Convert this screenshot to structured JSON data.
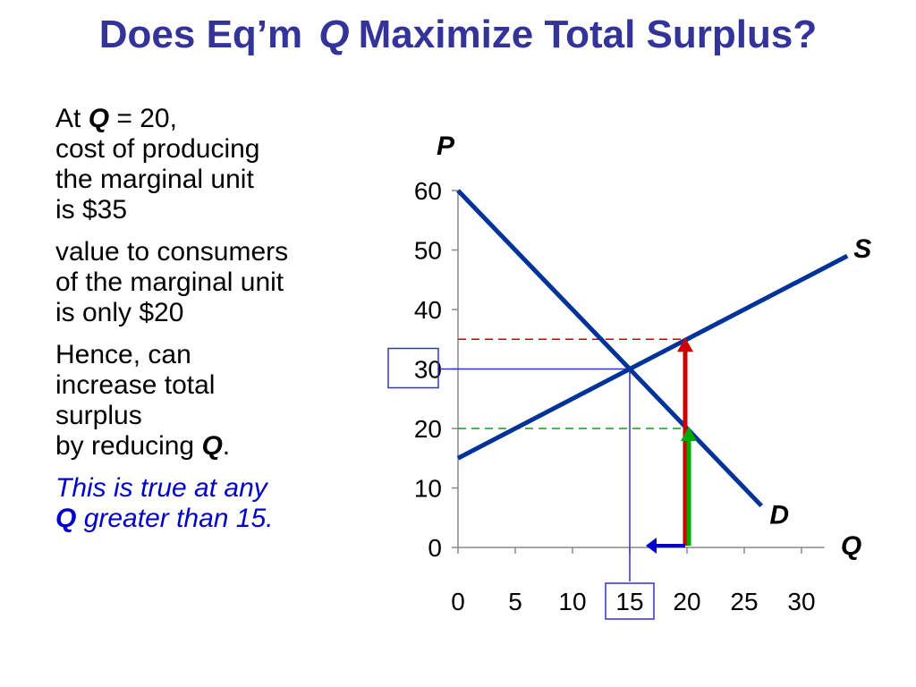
{
  "title": {
    "part1": "Does Eq’m",
    "q": "Q",
    "part2": "Maximize Total Surplus?"
  },
  "text": {
    "p1_a": "At",
    "p1_q": "Q",
    "p1_b": "= 20,",
    "p1_l2": "cost of producing",
    "p1_l3": "the marginal unit",
    "p1_l4": "is $35",
    "p2_l1": "value to consumers",
    "p2_l2": "of the marginal unit",
    "p2_l3": "is only $20",
    "p3_l1": "Hence, can",
    "p3_l2": "increase total",
    "p3_l3": "surplus",
    "p3_l4a": "by reducing",
    "p3_l4q": "Q",
    "p3_l4b": ".",
    "p4_l1": "This is true at any",
    "p4_l2q": "Q",
    "p4_l2b": "greater than 15."
  },
  "chart_data": {
    "type": "line",
    "xlabel": "Q",
    "ylabel": "P",
    "xlim": [
      0,
      32
    ],
    "ylim": [
      0,
      60
    ],
    "x_ticks": [
      0,
      5,
      10,
      15,
      20,
      25,
      30
    ],
    "y_ticks": [
      0,
      10,
      20,
      30,
      40,
      50,
      60
    ],
    "series": [
      {
        "name": "D",
        "points": [
          [
            0,
            60
          ],
          [
            26.5,
            7
          ]
        ],
        "color": "#003399"
      },
      {
        "name": "S",
        "points": [
          [
            0,
            15
          ],
          [
            34,
            49
          ]
        ],
        "color": "#003399"
      }
    ],
    "equilibrium": {
      "q": 15,
      "p": 30
    },
    "annotations": {
      "cost_at_20": 35,
      "value_at_20": 20,
      "q_marginal": 20,
      "boxed_x_tick": 15,
      "boxed_y_tick": 30
    },
    "colors": {
      "curve": "#003399",
      "red": "#cc0000",
      "green": "#00aa00",
      "blue_arrow": "#0000cc",
      "guide": "#3333cc"
    }
  }
}
